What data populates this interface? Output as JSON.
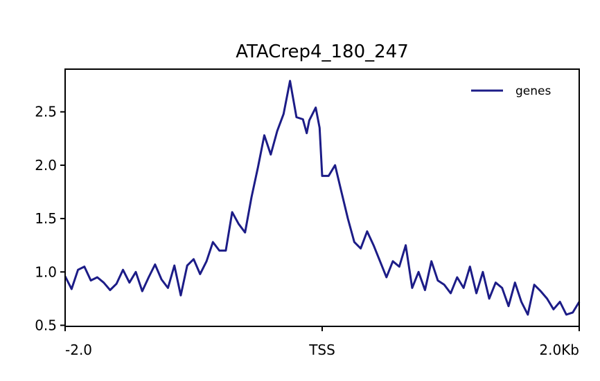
{
  "chart_data": {
    "type": "line",
    "title": "ATACrep4_180_247",
    "xlabel": "",
    "ylabel": "",
    "x_tick_labels": [
      "-2.0",
      "TSS",
      "2.0Kb"
    ],
    "x_tick_positions": [
      -2.0,
      0.0,
      2.0
    ],
    "xlim": [
      -2.0,
      2.0
    ],
    "ylim": [
      0.49,
      2.9
    ],
    "y_ticks": [
      0.5,
      1.0,
      1.5,
      2.0,
      2.5
    ],
    "y_tick_labels": [
      "0.5",
      "1.0",
      "1.5",
      "2.0",
      "2.5"
    ],
    "grid": false,
    "legend_position": "top-right",
    "series": [
      {
        "name": "genes",
        "color": "#1c1c87",
        "x": [
          -2.0,
          -1.95,
          -1.9,
          -1.85,
          -1.8,
          -1.75,
          -1.7,
          -1.65,
          -1.6,
          -1.55,
          -1.5,
          -1.45,
          -1.4,
          -1.35,
          -1.3,
          -1.25,
          -1.2,
          -1.15,
          -1.1,
          -1.05,
          -1.0,
          -0.95,
          -0.9,
          -0.85,
          -0.8,
          -0.75,
          -0.7,
          -0.65,
          -0.6,
          -0.55,
          -0.5,
          -0.45,
          -0.4,
          -0.35,
          -0.3,
          -0.25,
          -0.2,
          -0.15,
          -0.12,
          -0.1,
          -0.05,
          -0.02,
          0.0,
          0.05,
          0.1,
          0.15,
          0.2,
          0.25,
          0.3,
          0.35,
          0.4,
          0.45,
          0.5,
          0.55,
          0.6,
          0.65,
          0.7,
          0.75,
          0.8,
          0.85,
          0.9,
          0.95,
          1.0,
          1.05,
          1.1,
          1.15,
          1.2,
          1.25,
          1.3,
          1.35,
          1.4,
          1.45,
          1.5,
          1.55,
          1.6,
          1.65,
          1.7,
          1.75,
          1.8,
          1.85,
          1.9,
          1.95,
          2.0
        ],
        "values": [
          0.96,
          0.84,
          1.02,
          1.05,
          0.92,
          0.95,
          0.9,
          0.83,
          0.89,
          1.02,
          0.9,
          1.0,
          0.82,
          0.95,
          1.07,
          0.93,
          0.85,
          1.06,
          0.78,
          1.06,
          1.12,
          0.98,
          1.1,
          1.28,
          1.2,
          1.2,
          1.56,
          1.45,
          1.37,
          1.7,
          1.98,
          2.28,
          2.1,
          2.32,
          2.48,
          2.79,
          2.45,
          2.43,
          2.3,
          2.42,
          2.54,
          2.35,
          1.9,
          1.9,
          2.0,
          1.75,
          1.5,
          1.28,
          1.22,
          1.38,
          1.25,
          1.1,
          0.95,
          1.1,
          1.05,
          1.25,
          0.85,
          1.0,
          0.83,
          1.1,
          0.92,
          0.88,
          0.8,
          0.95,
          0.85,
          1.05,
          0.8,
          1.0,
          0.75,
          0.9,
          0.85,
          0.68,
          0.9,
          0.72,
          0.6,
          0.88,
          0.82,
          0.75,
          0.65,
          0.72,
          0.6,
          0.62,
          0.72
        ]
      }
    ]
  }
}
